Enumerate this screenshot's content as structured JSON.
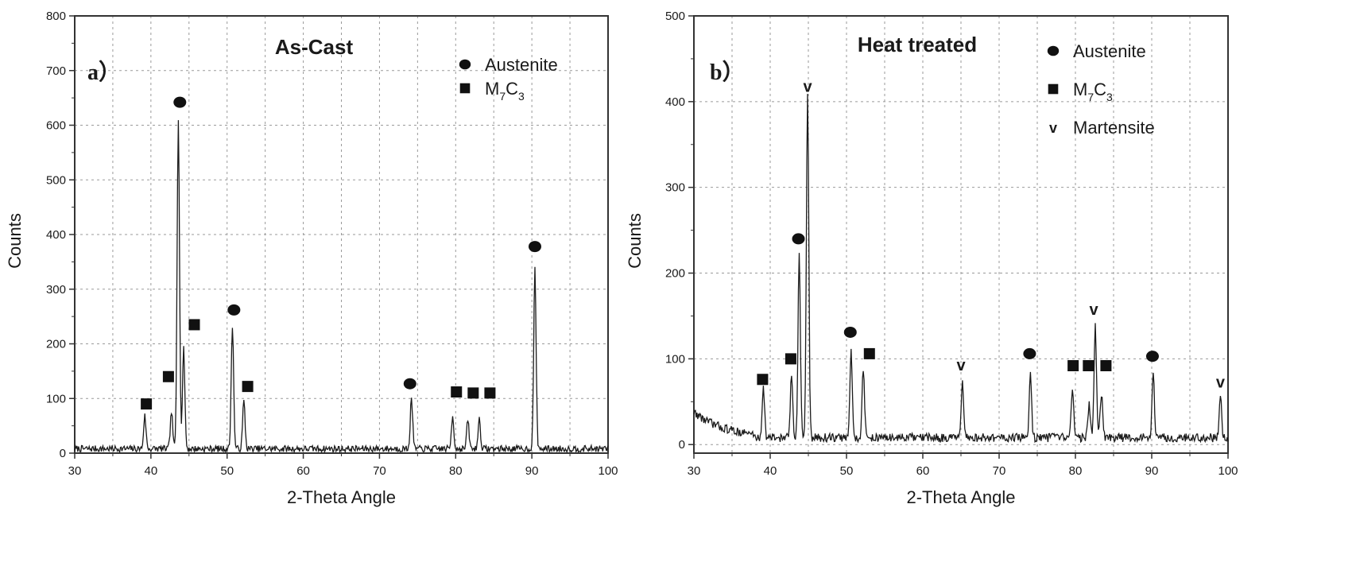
{
  "chart_data": [
    {
      "type": "line",
      "panel_label": "a）",
      "title": "As-Cast",
      "xlabel": "2-Theta Angle",
      "ylabel": "Counts",
      "xlim": [
        30,
        100
      ],
      "ylim": [
        0,
        800
      ],
      "xticks": [
        30,
        40,
        50,
        60,
        70,
        80,
        90,
        100
      ],
      "yticks": [
        0,
        100,
        200,
        300,
        400,
        500,
        600,
        700,
        800
      ],
      "grid": true,
      "baseline": 8,
      "noise": 6,
      "legend_position": "top-right",
      "legend": [
        {
          "symbol": "circle",
          "label": "Austenite"
        },
        {
          "symbol": "square",
          "label": "M7C3",
          "base": "M",
          "sub1": "7",
          "mid": "C",
          "sub2": "3"
        }
      ],
      "series": [
        {
          "peaks": [
            {
              "x": 39.2,
              "y": 68
            },
            {
              "x": 42.7,
              "y": 75
            },
            {
              "x": 43.6,
              "y": 615
            },
            {
              "x": 44.3,
              "y": 190
            },
            {
              "x": 50.7,
              "y": 235
            },
            {
              "x": 52.2,
              "y": 95
            },
            {
              "x": 74.2,
              "y": 100
            },
            {
              "x": 79.6,
              "y": 68
            },
            {
              "x": 81.6,
              "y": 60
            },
            {
              "x": 83.1,
              "y": 62
            },
            {
              "x": 90.4,
              "y": 335
            }
          ]
        }
      ],
      "markers": [
        {
          "symbol": "square",
          "x": 39.4,
          "y": 90
        },
        {
          "symbol": "square",
          "x": 42.3,
          "y": 140
        },
        {
          "symbol": "circle",
          "x": 43.8,
          "y": 642
        },
        {
          "symbol": "square",
          "x": 45.7,
          "y": 235
        },
        {
          "symbol": "circle",
          "x": 50.9,
          "y": 262
        },
        {
          "symbol": "square",
          "x": 52.7,
          "y": 122
        },
        {
          "symbol": "circle",
          "x": 74.0,
          "y": 127
        },
        {
          "symbol": "square",
          "x": 80.1,
          "y": 112
        },
        {
          "symbol": "square",
          "x": 82.3,
          "y": 110
        },
        {
          "symbol": "square",
          "x": 84.5,
          "y": 110
        },
        {
          "symbol": "circle",
          "x": 90.4,
          "y": 378
        }
      ]
    },
    {
      "type": "line",
      "panel_label": "b）",
      "title": "Heat treated",
      "xlabel": "2-Theta Angle",
      "ylabel": "Counts",
      "xlim": [
        30,
        100
      ],
      "ylim": [
        -10,
        500
      ],
      "xticks": [
        30,
        40,
        50,
        60,
        70,
        80,
        90,
        100
      ],
      "yticks": [
        0,
        100,
        200,
        300,
        400,
        500
      ],
      "grid": true,
      "baseline": 8,
      "noise": 5,
      "legend_position": "top-right",
      "legend": [
        {
          "symbol": "circle",
          "label": "Austenite"
        },
        {
          "symbol": "square",
          "label": "M7C3",
          "base": "M",
          "sub1": "7",
          "mid": "C",
          "sub2": "3"
        },
        {
          "symbol": "v",
          "label": "Martensite"
        }
      ],
      "series": [
        {
          "peaks": [
            {
              "x": 39.1,
              "y": 68
            },
            {
              "x": 42.8,
              "y": 82
            },
            {
              "x": 43.8,
              "y": 220
            },
            {
              "x": 44.9,
              "y": 408
            },
            {
              "x": 50.6,
              "y": 108
            },
            {
              "x": 52.2,
              "y": 90
            },
            {
              "x": 65.2,
              "y": 70
            },
            {
              "x": 74.1,
              "y": 82
            },
            {
              "x": 79.6,
              "y": 68
            },
            {
              "x": 81.8,
              "y": 48
            },
            {
              "x": 82.6,
              "y": 140
            },
            {
              "x": 83.4,
              "y": 60
            },
            {
              "x": 90.2,
              "y": 82
            },
            {
              "x": 99.0,
              "y": 58
            }
          ]
        }
      ],
      "markers": [
        {
          "symbol": "square",
          "x": 39.0,
          "y": 76
        },
        {
          "symbol": "square",
          "x": 42.7,
          "y": 100
        },
        {
          "symbol": "circle",
          "x": 43.7,
          "y": 240
        },
        {
          "symbol": "v",
          "x": 44.9,
          "y": 418
        },
        {
          "symbol": "circle",
          "x": 50.5,
          "y": 131
        },
        {
          "symbol": "square",
          "x": 53.0,
          "y": 106
        },
        {
          "symbol": "v",
          "x": 65.0,
          "y": 93
        },
        {
          "symbol": "circle",
          "x": 74.0,
          "y": 106
        },
        {
          "symbol": "square",
          "x": 79.7,
          "y": 92
        },
        {
          "symbol": "square",
          "x": 81.7,
          "y": 92
        },
        {
          "symbol": "v",
          "x": 82.4,
          "y": 158
        },
        {
          "symbol": "square",
          "x": 84.0,
          "y": 92
        },
        {
          "symbol": "circle",
          "x": 90.1,
          "y": 103
        },
        {
          "symbol": "v",
          "x": 99.0,
          "y": 73
        }
      ]
    }
  ]
}
